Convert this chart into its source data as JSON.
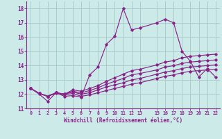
{
  "xlabel": "Windchill (Refroidissement éolien,°C)",
  "bg_color": "#cceae8",
  "grid_color": "#aacccc",
  "line_color": "#882288",
  "xlim": [
    -0.5,
    22.5
  ],
  "ylim": [
    11,
    18.5
  ],
  "xticks": [
    0,
    1,
    2,
    3,
    4,
    5,
    6,
    7,
    8,
    9,
    10,
    11,
    12,
    13,
    15,
    16,
    17,
    18,
    19,
    20,
    21,
    22
  ],
  "yticks": [
    11,
    12,
    13,
    14,
    15,
    16,
    17,
    18
  ],
  "series": [
    {
      "x": [
        0,
        1,
        2,
        3,
        4,
        5,
        6,
        7,
        8,
        9,
        10,
        11,
        12,
        13,
        15,
        16,
        17,
        18,
        19,
        20,
        21,
        22
      ],
      "y": [
        12.4,
        12.0,
        11.5,
        12.1,
        11.85,
        11.9,
        11.8,
        13.35,
        13.9,
        15.5,
        16.05,
        18.0,
        16.5,
        16.65,
        17.0,
        17.25,
        17.0,
        15.0,
        14.3,
        13.2,
        13.8,
        13.2
      ]
    },
    {
      "x": [
        0,
        1,
        2,
        3,
        4,
        5,
        6,
        7,
        8,
        9,
        10,
        11,
        12,
        13,
        15,
        16,
        17,
        18,
        19,
        20,
        21,
        22
      ],
      "y": [
        12.4,
        12.05,
        11.85,
        12.05,
        11.95,
        12.05,
        11.85,
        11.95,
        12.1,
        12.25,
        12.4,
        12.55,
        12.7,
        12.8,
        13.1,
        13.25,
        13.35,
        13.5,
        13.6,
        13.65,
        13.7,
        13.75
      ]
    },
    {
      "x": [
        0,
        1,
        2,
        3,
        4,
        5,
        6,
        7,
        8,
        9,
        10,
        11,
        12,
        13,
        15,
        16,
        17,
        18,
        19,
        20,
        21,
        22
      ],
      "y": [
        12.4,
        12.05,
        11.85,
        12.1,
        12.0,
        12.15,
        12.0,
        12.1,
        12.3,
        12.5,
        12.65,
        12.8,
        13.0,
        13.1,
        13.4,
        13.55,
        13.65,
        13.8,
        13.9,
        13.95,
        14.0,
        14.05
      ]
    },
    {
      "x": [
        0,
        1,
        2,
        3,
        4,
        5,
        6,
        7,
        8,
        9,
        10,
        11,
        12,
        13,
        15,
        16,
        17,
        18,
        19,
        20,
        21,
        22
      ],
      "y": [
        12.4,
        12.05,
        11.85,
        12.1,
        12.0,
        12.2,
        12.1,
        12.25,
        12.45,
        12.7,
        12.9,
        13.1,
        13.35,
        13.45,
        13.7,
        13.9,
        14.0,
        14.15,
        14.25,
        14.3,
        14.35,
        14.4
      ]
    },
    {
      "x": [
        0,
        1,
        2,
        3,
        4,
        5,
        6,
        7,
        8,
        9,
        10,
        11,
        12,
        13,
        15,
        16,
        17,
        18,
        19,
        20,
        21,
        22
      ],
      "y": [
        12.4,
        12.05,
        11.85,
        12.1,
        12.0,
        12.3,
        12.2,
        12.4,
        12.6,
        12.9,
        13.15,
        13.4,
        13.65,
        13.75,
        14.05,
        14.25,
        14.35,
        14.55,
        14.65,
        14.7,
        14.75,
        14.8
      ]
    }
  ]
}
